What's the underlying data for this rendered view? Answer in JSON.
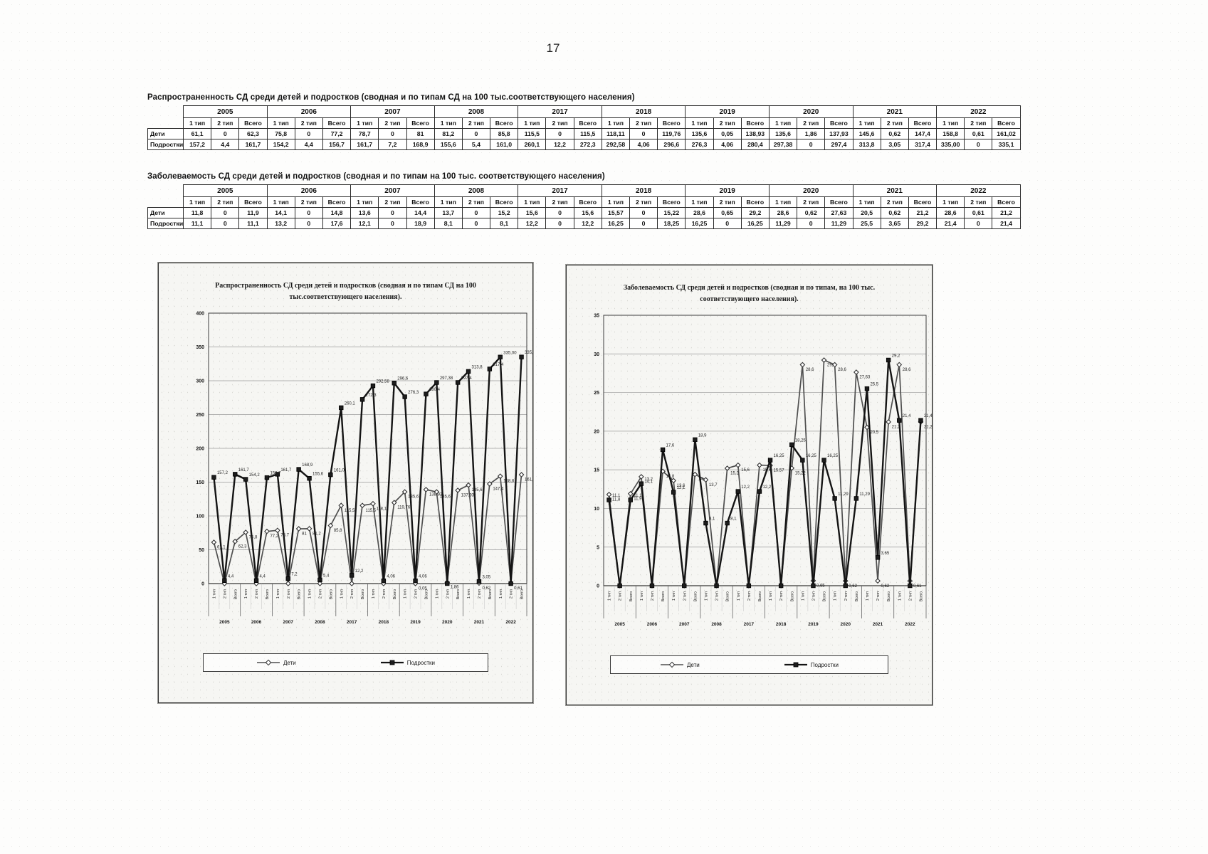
{
  "page_number": "17",
  "table1": {
    "title": "Распространенность СД среди детей и подростков (сводная и по типам СД на 100 тыс.соответствующего населения)",
    "years": [
      "2005",
      "2006",
      "2007",
      "2008",
      "2017",
      "2018",
      "2019",
      "2020",
      "2021",
      "2022"
    ],
    "subcols": [
      "1 тип",
      "2 тип",
      "Всего"
    ],
    "rows": [
      {
        "label": "Дети",
        "values": [
          "61,1",
          "0",
          "62,3",
          "75,8",
          "0",
          "77,2",
          "78,7",
          "0",
          "81",
          "81,2",
          "0",
          "85,8",
          "115,5",
          "0",
          "115,5",
          "118,11",
          "0",
          "119,76",
          "135,6",
          "0,05",
          "138,93",
          "135,6",
          "1,86",
          "137,93",
          "145,6",
          "0,62",
          "147,4",
          "158,8",
          "0,61",
          "161,02"
        ]
      },
      {
        "label": "Подростки",
        "values": [
          "157,2",
          "4,4",
          "161,7",
          "154,2",
          "4,4",
          "156,7",
          "161,7",
          "7,2",
          "168,9",
          "155,6",
          "5,4",
          "161,0",
          "260,1",
          "12,2",
          "272,3",
          "292,58",
          "4,06",
          "296,6",
          "276,3",
          "4,06",
          "280,4",
          "297,38",
          "0",
          "297,4",
          "313,8",
          "3,05",
          "317,4",
          "335,00",
          "0",
          "335,1"
        ]
      }
    ]
  },
  "table2": {
    "title": "Заболеваемость СД среди детей и подростков (сводная и по типам на 100 тыс. соответствующего населения)",
    "years": [
      "2005",
      "2006",
      "2007",
      "2008",
      "2017",
      "2018",
      "2019",
      "2020",
      "2021",
      "2022"
    ],
    "subcols": [
      "1 тип",
      "2 тип",
      "Всего"
    ],
    "rows": [
      {
        "label": "Дети",
        "values": [
          "11,8",
          "0",
          "11,9",
          "14,1",
          "0",
          "14,8",
          "13,6",
          "0",
          "14,4",
          "13,7",
          "0",
          "15,2",
          "15,6",
          "0",
          "15,6",
          "15,57",
          "0",
          "15,22",
          "28,6",
          "0,65",
          "29,2",
          "28,6",
          "0,62",
          "27,63",
          "20,5",
          "0,62",
          "21,2",
          "28,6",
          "0,61",
          "21,2"
        ]
      },
      {
        "label": "Подростки",
        "values": [
          "11,1",
          "0",
          "11,1",
          "13,2",
          "0",
          "17,6",
          "12,1",
          "0",
          "18,9",
          "8,1",
          "0",
          "8,1",
          "12,2",
          "0",
          "12,2",
          "16,25",
          "0",
          "18,25",
          "16,25",
          "0",
          "16,25",
          "11,29",
          "0",
          "11,29",
          "25,5",
          "3,65",
          "29,2",
          "21,4",
          "0",
          "21,4"
        ]
      }
    ]
  },
  "chart_data": [
    {
      "type": "line",
      "title": "Распространенность СД среди детей и подростков (сводная и по типам СД на 100 тыс.соответствующего населения).",
      "x_tick_pattern": [
        "1 тип",
        "2 тип",
        "Всего"
      ],
      "year_groups": [
        "2005",
        "2006",
        "2007",
        "2008",
        "2017",
        "2018",
        "2019",
        "2020",
        "2021",
        "2022"
      ],
      "ylim": [
        0,
        400
      ],
      "ytick_step": 50,
      "grid": true,
      "legend_position": "bottom",
      "series": [
        {
          "name": "Дети",
          "marker": "diamond",
          "color": "#4f4f4f",
          "values": [
            61.1,
            0,
            62.3,
            75.8,
            0,
            77.2,
            78.7,
            0,
            81,
            81.2,
            0,
            85.8,
            115.5,
            0,
            115.5,
            118.11,
            0,
            119.76,
            135.6,
            0.05,
            138.93,
            135.6,
            1.86,
            137.93,
            145.6,
            0.62,
            147.4,
            158.8,
            0.61,
            161.02
          ],
          "labels": [
            "61,1",
            "0",
            "62,3",
            "75,8",
            "0",
            "77,2",
            "78,7",
            "0",
            "81",
            "81,2",
            "0",
            "85,8",
            "115,5",
            "0",
            "115,5",
            "118,11",
            "0",
            "119,76",
            "135,6",
            "0,05",
            "138,93",
            "135,6",
            "1,86",
            "137,93",
            "145,6",
            "0,62",
            "147,4",
            "158,8",
            "0,61",
            "161,02"
          ]
        },
        {
          "name": "Подростки",
          "marker": "square",
          "color": "#141414",
          "values": [
            157.2,
            4.4,
            161.7,
            154.2,
            4.4,
            156.7,
            161.7,
            7.2,
            168.9,
            155.6,
            5.4,
            161.0,
            260.1,
            12.2,
            272.3,
            292.58,
            4.06,
            296.6,
            276.3,
            4.06,
            280.4,
            297.38,
            0,
            297.4,
            313.8,
            3.05,
            317.4,
            335.0,
            0,
            335.1
          ],
          "labels": [
            "157,2",
            "4,4",
            "161,7",
            "154,2",
            "4,4",
            "156,7",
            "161,7",
            "7,2",
            "168,9",
            "155,6",
            "5,4",
            "161,0",
            "260,1",
            "12,2",
            "272,3",
            "292,58",
            "4,06",
            "296,6",
            "276,3",
            "4,06",
            "280,4",
            "297,38",
            "0",
            "297,4",
            "313,8",
            "3,05",
            "317,4",
            "335,00",
            "0",
            "335,1"
          ]
        }
      ]
    },
    {
      "type": "line",
      "title": "Заболеваемость СД среди детей и подростков (сводная и по типам, на 100 тыс. соответствующего населения).",
      "x_tick_pattern": [
        "1 тип",
        "2 тип",
        "Всего"
      ],
      "year_groups": [
        "2005",
        "2006",
        "2007",
        "2008",
        "2017",
        "2018",
        "2019",
        "2020",
        "2021",
        "2022"
      ],
      "ylim": [
        0,
        35
      ],
      "ytick_step": 5,
      "grid": true,
      "legend_position": "bottom",
      "series": [
        {
          "name": "Дети",
          "marker": "diamond",
          "color": "#4f4f4f",
          "values": [
            11.8,
            0,
            11.9,
            14.1,
            0,
            14.8,
            13.6,
            0,
            14.4,
            13.7,
            0,
            15.2,
            15.6,
            0,
            15.6,
            15.57,
            0,
            15.22,
            28.6,
            0.65,
            29.2,
            28.6,
            0.62,
            27.63,
            20.5,
            0.62,
            21.2,
            28.6,
            0.61,
            21.2
          ],
          "labels": [
            "11,8",
            "0",
            "11,9",
            "14,1",
            "0",
            "14,8",
            "13,6",
            "0",
            "14,4",
            "13,7",
            "0",
            "15,2",
            "15,6",
            "0",
            "15,6",
            "15,57",
            "0",
            "15,22",
            "28,6",
            "0,65",
            "29,2",
            "28,6",
            "0,62",
            "27,63",
            "20,5",
            "0,62",
            "21,2",
            "28,6",
            "0,61",
            "21,2"
          ]
        },
        {
          "name": "Подростки",
          "marker": "square",
          "color": "#141414",
          "values": [
            11.1,
            0,
            11.1,
            13.2,
            0,
            17.6,
            12.1,
            0,
            18.9,
            8.1,
            0,
            8.1,
            12.2,
            0,
            12.2,
            16.25,
            0,
            18.25,
            16.25,
            0,
            16.25,
            11.29,
            0,
            11.29,
            25.5,
            3.65,
            29.2,
            21.4,
            0,
            21.4
          ],
          "labels": [
            "11,1",
            "0",
            "11,1",
            "13,2",
            "0",
            "17,6",
            "12,1",
            "0",
            "18,9",
            "8,1",
            "0",
            "8,1",
            "12,2",
            "0",
            "12,2",
            "16,25",
            "0",
            "18,25",
            "16,25",
            "0",
            "16,25",
            "11,29",
            "0",
            "11,29",
            "25,5",
            "3,65",
            "29,2",
            "21,4",
            "0",
            "21,4"
          ]
        }
      ]
    }
  ]
}
